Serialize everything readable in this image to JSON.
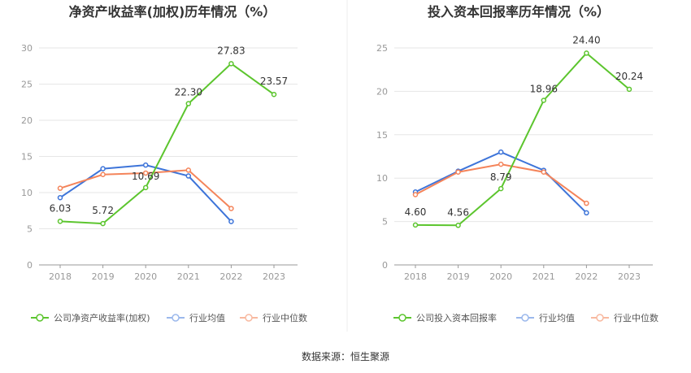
{
  "charts": [
    {
      "title": "净资产收益率(加权)历年情况（%）",
      "legend": [
        "公司净资产收益率(加权)",
        "行业均值",
        "行业中位数"
      ],
      "chart_data": {
        "type": "line",
        "categories": [
          "2018",
          "2019",
          "2020",
          "2021",
          "2022",
          "2023"
        ],
        "ylim": [
          0,
          30
        ],
        "yticks": [
          0,
          5,
          10,
          15,
          20,
          25,
          30
        ],
        "series": [
          {
            "name": "公司净资产收益率(加权)",
            "color": "#5cc52e",
            "values": [
              6.03,
              5.72,
              10.69,
              22.3,
              27.83,
              23.57
            ],
            "labels": [
              "6.03",
              "5.72",
              "10.69",
              "22.30",
              "27.83",
              "23.57"
            ]
          },
          {
            "name": "行业均值",
            "color": "#3d74d9",
            "values": [
              9.3,
              13.3,
              13.8,
              12.3,
              6.0,
              null
            ]
          },
          {
            "name": "行业中位数",
            "color": "#f4845a",
            "values": [
              10.6,
              12.5,
              12.7,
              13.1,
              7.8,
              null
            ]
          }
        ]
      }
    },
    {
      "title": "投入资本回报率历年情况（%）",
      "legend": [
        "公司投入资本回报率",
        "行业均值",
        "行业中位数"
      ],
      "chart_data": {
        "type": "line",
        "categories": [
          "2018",
          "2019",
          "2020",
          "2021",
          "2022",
          "2023"
        ],
        "ylim": [
          0,
          25
        ],
        "yticks": [
          0,
          5,
          10,
          15,
          20,
          25
        ],
        "series": [
          {
            "name": "公司投入资本回报率",
            "color": "#5cc52e",
            "values": [
              4.6,
              4.56,
              8.79,
              18.96,
              24.4,
              20.24
            ],
            "labels": [
              "4.60",
              "4.56",
              "8.79",
              "18.96",
              "24.40",
              "20.24"
            ]
          },
          {
            "name": "行业均值",
            "color": "#3d74d9",
            "values": [
              8.4,
              10.8,
              13.0,
              10.9,
              6.0,
              null
            ]
          },
          {
            "name": "行业中位数",
            "color": "#f4845a",
            "values": [
              8.1,
              10.7,
              11.6,
              10.7,
              7.1,
              null
            ]
          }
        ]
      }
    }
  ],
  "footer": {
    "source": "数据来源：恒生聚源"
  }
}
